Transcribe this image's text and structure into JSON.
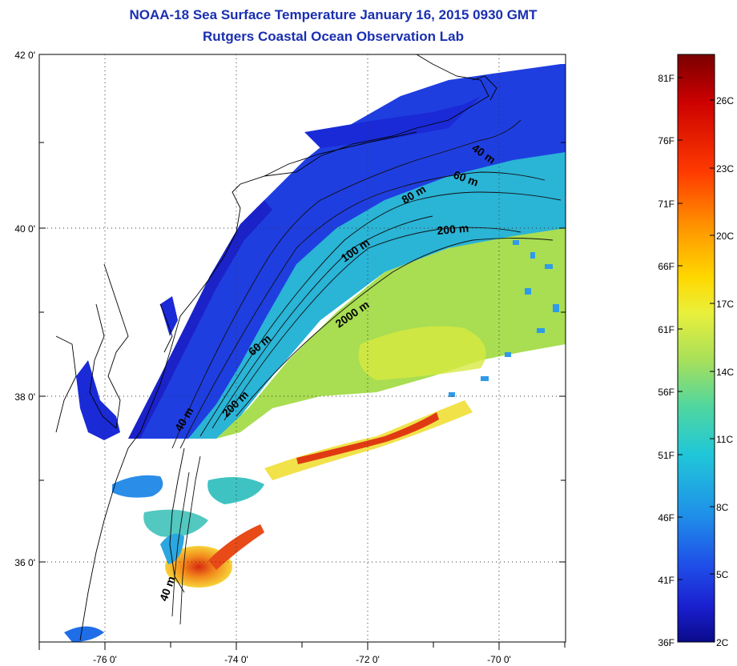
{
  "header": {
    "title_line1": "NOAA-18 Sea Surface Temperature January 16, 2015 0930 GMT",
    "title_line2": "Rutgers Coastal Ocean Observation Lab"
  },
  "map": {
    "lat_labels": [
      "42 0'",
      "40 0'",
      "38 0'",
      "36 0'"
    ],
    "lon_labels": [
      "-76 0'",
      "-74 0'",
      "-72 0'",
      "-70 0'"
    ],
    "contour_labels": [
      "40 m",
      "60 m",
      "80 m",
      "200 m",
      "100 m",
      "2000 m",
      "60 m",
      "200 m",
      "40 m",
      "40 m"
    ]
  },
  "colorbar": {
    "f_labels": [
      "81F",
      "76F",
      "71F",
      "66F",
      "61F",
      "56F",
      "51F",
      "46F",
      "41F",
      "36F"
    ],
    "c_labels": [
      "26C",
      "23C",
      "20C",
      "17C",
      "14C",
      "11C",
      "8C",
      "5C",
      "2C"
    ],
    "colors": [
      "#7a0000",
      "#cc0000",
      "#ff3a00",
      "#ff9a00",
      "#ffd800",
      "#e9f03c",
      "#a8e05a",
      "#4fd6a0",
      "#20c7d8",
      "#1f92e8",
      "#1f4ee8",
      "#1a1fcf",
      "#0a0a8a"
    ]
  }
}
